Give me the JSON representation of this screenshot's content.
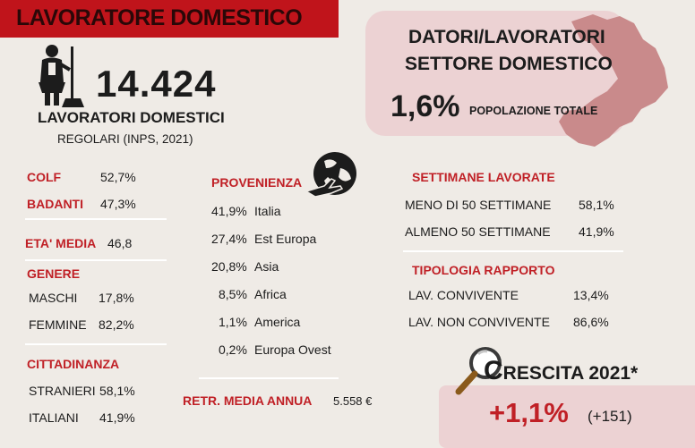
{
  "header": {
    "title": "LAVORATORE DOMESTICO"
  },
  "workers": {
    "count": "14.424",
    "label": "LAVORATORI DOMESTICI",
    "sublabel": "REGOLARI (INPS, 2021)",
    "icon": "domestic-worker-icon"
  },
  "population_box": {
    "title_line1": "DATORI/LAVORATORI",
    "title_line2": "SETTORE DOMESTICO",
    "percent": "1,6%",
    "percent_label": "POPOLAZIONE TOTALE",
    "map_icon": "calabria-map-icon",
    "map_color": "#c98a8b"
  },
  "type": {
    "colf_label": "COLF",
    "colf_value": "52,7%",
    "badanti_label": "BADANTI",
    "badanti_value": "47,3%"
  },
  "age": {
    "label": "ETA' MEDIA",
    "value": "46,8"
  },
  "gender": {
    "title": "GENERE",
    "male_label": "MASCHI",
    "male_value": "17,8%",
    "female_label": "FEMMINE",
    "female_value": "82,2%"
  },
  "citizenship": {
    "title": "CITTADINANZA",
    "foreign_label": "STRANIERI",
    "foreign_value": "58,1%",
    "italian_label": "ITALIANI",
    "italian_value": "41,9%"
  },
  "origin": {
    "title": "PROVENIENZA",
    "icon": "globe-plane-icon",
    "items": [
      {
        "value": "41,9%",
        "label": "Italia"
      },
      {
        "value": "27,4%",
        "label": "Est Europa"
      },
      {
        "value": "20,8%",
        "label": "Asia"
      },
      {
        "value": "8,5%",
        "label": "Africa"
      },
      {
        "value": "1,1%",
        "label": "America"
      },
      {
        "value": "0,2%",
        "label": "Europa Ovest"
      }
    ]
  },
  "salary": {
    "label": "RETR. MEDIA ANNUA",
    "value": "5.558 €"
  },
  "weeks": {
    "title": "SETTIMANE LAVORATE",
    "less_label": "MENO DI 50 SETTIMANE",
    "less_value": "58,1%",
    "atleast_label": "ALMENO 50 SETTIMANE",
    "atleast_value": "41,9%"
  },
  "relationship": {
    "title": "TIPOLOGIA RAPPORTO",
    "live_in_label": "LAV. CONVIVENTE",
    "live_in_value": "13,4%",
    "live_out_label": "LAV. NON CONVIVENTE",
    "live_out_value": "86,6%"
  },
  "growth": {
    "title_initial": "C",
    "title_rest": "RESCITA 2021*",
    "percent": "+1,1%",
    "absolute": "(+151)",
    "icon": "magnifier-icon"
  },
  "colors": {
    "accent": "#c02026",
    "banner": "#c0141b",
    "box": "#ecd2d3",
    "background": "#efebe6"
  }
}
